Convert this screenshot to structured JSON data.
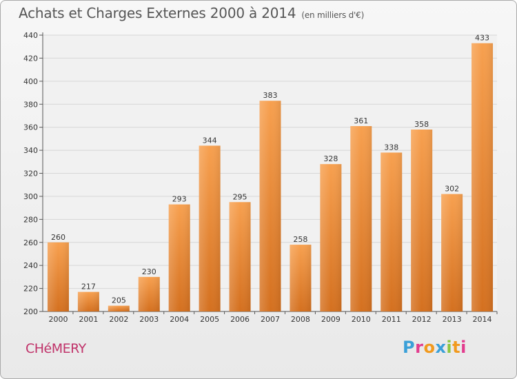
{
  "colors": {
    "bar_top": "#f7a04f",
    "bar_bottom": "#d4701f",
    "grid": "#d6d6d6",
    "town": "#c0336a",
    "logo_letters": [
      "#3aa0d8",
      "#e23c8e",
      "#f19a1f",
      "#3aa0d8",
      "#8dc63f",
      "#f19a1f",
      "#e23c8e"
    ]
  },
  "title": "Achats et Charges Externes 2000 à 2014",
  "subtitle": "(en milliers d'€)",
  "town": "CHéMERY",
  "logo": "Proxiti",
  "chart_data": {
    "type": "bar",
    "title": "Achats et Charges Externes 2000 à 2014",
    "subtitle": "(en milliers d'€)",
    "xlabel": "",
    "ylabel": "",
    "categories": [
      "2000",
      "2001",
      "2002",
      "2003",
      "2004",
      "2005",
      "2006",
      "2007",
      "2008",
      "2009",
      "2010",
      "2011",
      "2012",
      "2013",
      "2014"
    ],
    "values": [
      260,
      217,
      205,
      230,
      293,
      344,
      295,
      383,
      258,
      328,
      361,
      338,
      358,
      302,
      433
    ],
    "ylim": [
      200,
      440
    ],
    "yticks": [
      200,
      220,
      240,
      260,
      280,
      300,
      320,
      340,
      360,
      380,
      400,
      420,
      440
    ],
    "grid": true,
    "data_labels": true
  }
}
